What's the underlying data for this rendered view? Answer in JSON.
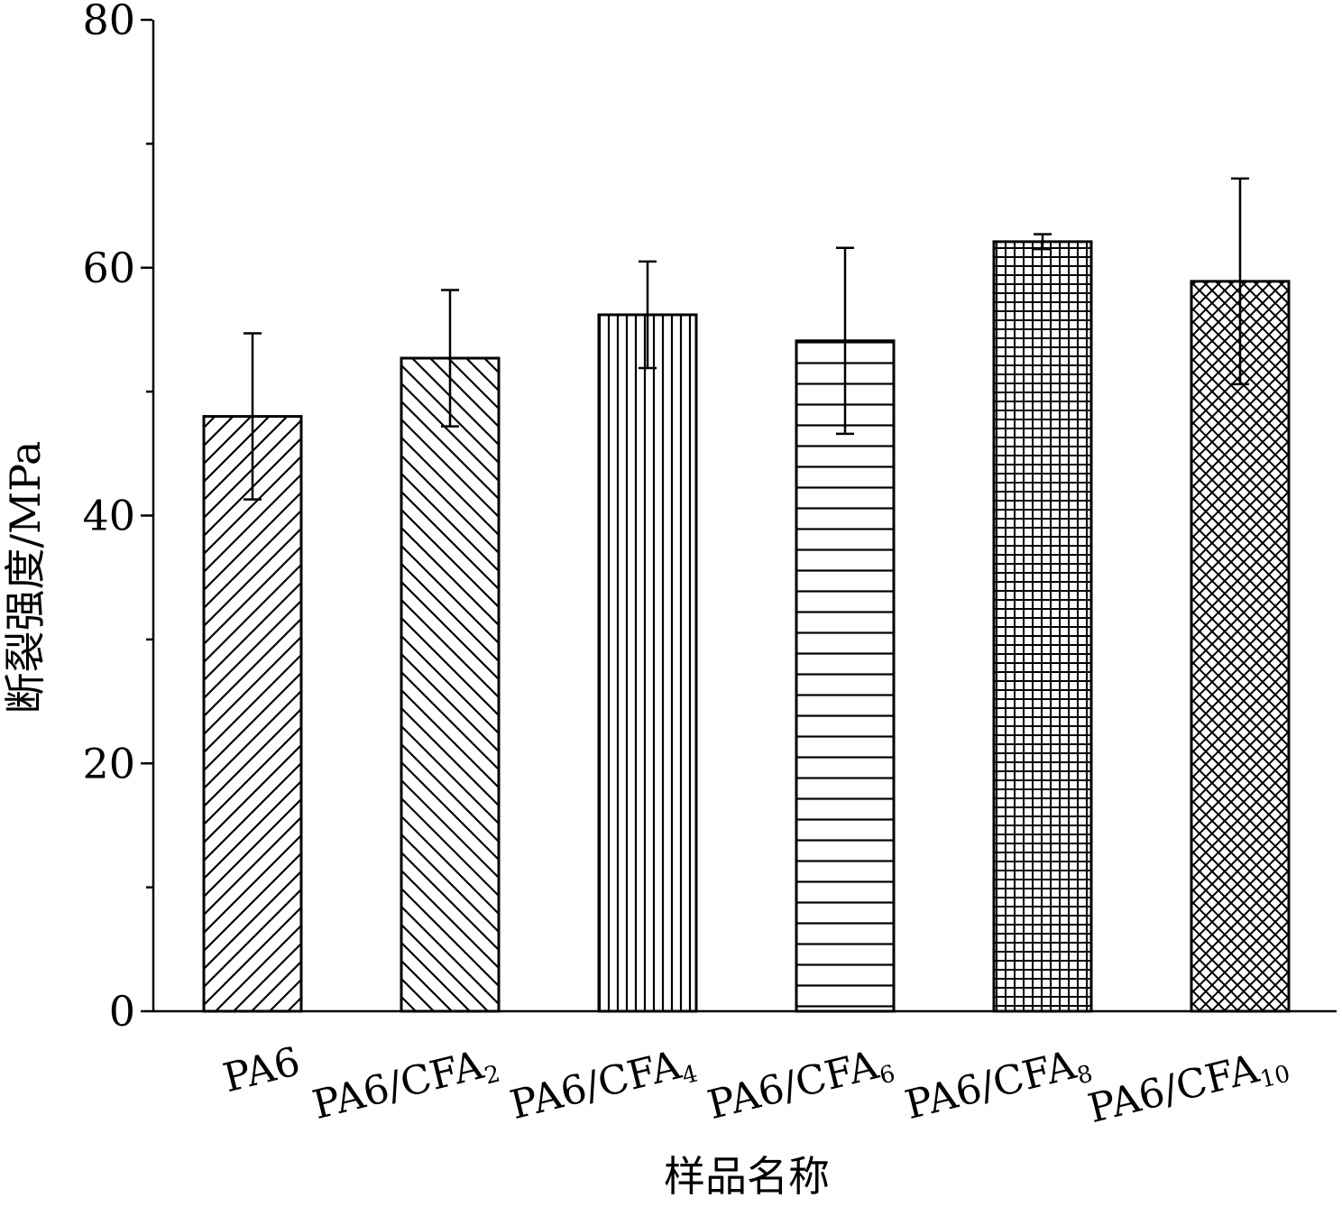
{
  "chart_data": {
    "type": "bar",
    "categories": [
      {
        "main": "PA6",
        "sub": ""
      },
      {
        "main": "PA6/CFA",
        "sub": "2"
      },
      {
        "main": "PA6/CFA",
        "sub": "4"
      },
      {
        "main": "PA6/CFA",
        "sub": "6"
      },
      {
        "main": "PA6/CFA",
        "sub": "8"
      },
      {
        "main": "PA6/CFA",
        "sub": "10"
      }
    ],
    "values": [
      48.0,
      52.7,
      56.2,
      54.1,
      62.1,
      58.9
    ],
    "errors": [
      6.7,
      5.5,
      4.3,
      7.5,
      0.6,
      8.3
    ],
    "patterns": [
      "diagonal-up",
      "diagonal-down",
      "vertical",
      "horizontal",
      "grid",
      "crosshatch"
    ],
    "ylim": [
      0,
      80
    ],
    "yticks_major": [
      0,
      20,
      40,
      60,
      80
    ],
    "yticks_labels": [
      "0",
      "20",
      "40",
      "60",
      "80"
    ],
    "yticks_minor": [
      10,
      30,
      50,
      70
    ],
    "xlabel": "样品名称",
    "ylabel": "断裂强度/MPa",
    "colors": {
      "bar_stroke": "#000000",
      "bar_fill": "#ffffff",
      "axis": "#000000"
    }
  }
}
